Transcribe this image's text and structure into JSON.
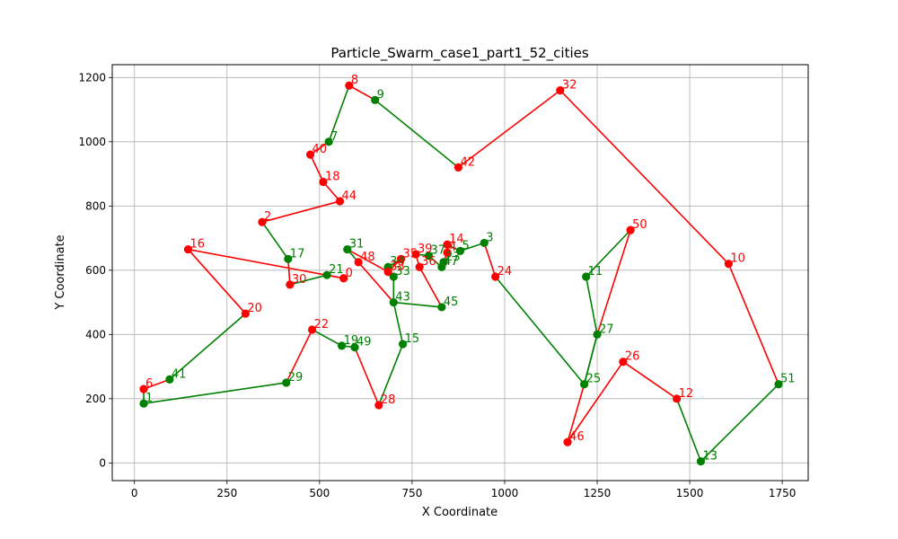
{
  "chart_data": {
    "type": "line",
    "title": "Particle_Swarm_case1_part1_52_cities",
    "xlabel": "X Coordinate",
    "ylabel": "Y Coordinate",
    "xlim": [
      -60,
      1820
    ],
    "ylim": [
      -55,
      1240
    ],
    "xticks": [
      0,
      250,
      500,
      750,
      1000,
      1250,
      1500,
      1750
    ],
    "yticks": [
      0,
      200,
      400,
      600,
      800,
      1000,
      1200
    ],
    "grid": true,
    "colors": {
      "red": "#ff0000",
      "green": "#008000",
      "axis": "#000000"
    },
    "cities": [
      {
        "id": 0,
        "x": 565,
        "y": 575,
        "color": "red"
      },
      {
        "id": 1,
        "x": 25,
        "y": 185,
        "color": "green"
      },
      {
        "id": 2,
        "x": 345,
        "y": 750,
        "color": "red"
      },
      {
        "id": 3,
        "x": 945,
        "y": 685,
        "color": "green"
      },
      {
        "id": 4,
        "x": 845,
        "y": 655,
        "color": "red"
      },
      {
        "id": 5,
        "x": 880,
        "y": 660,
        "color": "green"
      },
      {
        "id": 6,
        "x": 25,
        "y": 230,
        "color": "red"
      },
      {
        "id": 7,
        "x": 525,
        "y": 1000,
        "color": "green"
      },
      {
        "id": 8,
        "x": 580,
        "y": 1175,
        "color": "red"
      },
      {
        "id": 9,
        "x": 650,
        "y": 1130,
        "color": "green"
      },
      {
        "id": 10,
        "x": 1605,
        "y": 620,
        "color": "red"
      },
      {
        "id": 11,
        "x": 1220,
        "y": 580,
        "color": "green"
      },
      {
        "id": 12,
        "x": 1465,
        "y": 200,
        "color": "red"
      },
      {
        "id": 13,
        "x": 1530,
        "y": 5,
        "color": "green"
      },
      {
        "id": 14,
        "x": 845,
        "y": 680,
        "color": "red"
      },
      {
        "id": 15,
        "x": 725,
        "y": 370,
        "color": "green"
      },
      {
        "id": 16,
        "x": 145,
        "y": 665,
        "color": "red"
      },
      {
        "id": 17,
        "x": 415,
        "y": 635,
        "color": "green"
      },
      {
        "id": 18,
        "x": 510,
        "y": 875,
        "color": "red"
      },
      {
        "id": 19,
        "x": 560,
        "y": 365,
        "color": "green"
      },
      {
        "id": 20,
        "x": 300,
        "y": 465,
        "color": "red"
      },
      {
        "id": 21,
        "x": 520,
        "y": 585,
        "color": "green"
      },
      {
        "id": 22,
        "x": 480,
        "y": 415,
        "color": "red"
      },
      {
        "id": 23,
        "x": 835,
        "y": 625,
        "color": "green"
      },
      {
        "id": 24,
        "x": 975,
        "y": 580,
        "color": "red"
      },
      {
        "id": 25,
        "x": 1215,
        "y": 245,
        "color": "green"
      },
      {
        "id": 26,
        "x": 1320,
        "y": 315,
        "color": "red"
      },
      {
        "id": 27,
        "x": 1250,
        "y": 400,
        "color": "green"
      },
      {
        "id": 28,
        "x": 660,
        "y": 180,
        "color": "red"
      },
      {
        "id": 29,
        "x": 410,
        "y": 250,
        "color": "green"
      },
      {
        "id": 30,
        "x": 420,
        "y": 555,
        "color": "red"
      },
      {
        "id": 31,
        "x": 575,
        "y": 665,
        "color": "green"
      },
      {
        "id": 32,
        "x": 1150,
        "y": 1160,
        "color": "red"
      },
      {
        "id": 33,
        "x": 700,
        "y": 580,
        "color": "green"
      },
      {
        "id": 34,
        "x": 685,
        "y": 610,
        "color": "green"
      },
      {
        "id": 35,
        "x": 720,
        "y": 635,
        "color": "red"
      },
      {
        "id": 36,
        "x": 770,
        "y": 610,
        "color": "red"
      },
      {
        "id": 37,
        "x": 795,
        "y": 645,
        "color": "green"
      },
      {
        "id": 38,
        "x": 685,
        "y": 595,
        "color": "red"
      },
      {
        "id": 39,
        "x": 760,
        "y": 650,
        "color": "red"
      },
      {
        "id": 40,
        "x": 475,
        "y": 960,
        "color": "red"
      },
      {
        "id": 41,
        "x": 95,
        "y": 260,
        "color": "green"
      },
      {
        "id": 42,
        "x": 875,
        "y": 920,
        "color": "red"
      },
      {
        "id": 43,
        "x": 700,
        "y": 500,
        "color": "green"
      },
      {
        "id": 44,
        "x": 555,
        "y": 815,
        "color": "red"
      },
      {
        "id": 45,
        "x": 830,
        "y": 485,
        "color": "green"
      },
      {
        "id": 46,
        "x": 1170,
        "y": 65,
        "color": "red"
      },
      {
        "id": 47,
        "x": 830,
        "y": 610,
        "color": "green"
      },
      {
        "id": 48,
        "x": 605,
        "y": 625,
        "color": "red"
      },
      {
        "id": 49,
        "x": 595,
        "y": 360,
        "color": "green"
      },
      {
        "id": 50,
        "x": 1340,
        "y": 725,
        "color": "red"
      },
      {
        "id": 51,
        "x": 1740,
        "y": 245,
        "color": "green"
      }
    ],
    "route": [
      0,
      21,
      30,
      17,
      2,
      44,
      18,
      40,
      7,
      8,
      9,
      42,
      32,
      10,
      51,
      13,
      12,
      26,
      46,
      25,
      27,
      11,
      50,
      27,
      25,
      24,
      3,
      5,
      14,
      4,
      23,
      47,
      37,
      39,
      36,
      45,
      43,
      33,
      34,
      35,
      38,
      31,
      48,
      43,
      15,
      28,
      49,
      19,
      22,
      29,
      1,
      6,
      41,
      20,
      16,
      0
    ]
  }
}
